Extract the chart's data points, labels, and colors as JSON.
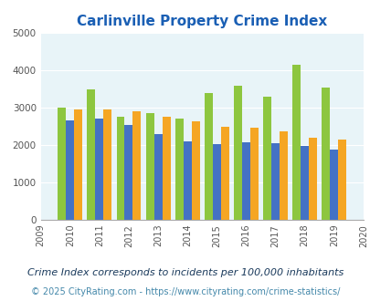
{
  "title": "Carlinville Property Crime Index",
  "bar_years": [
    2010,
    2011,
    2012,
    2013,
    2014,
    2015,
    2016,
    2017,
    2018,
    2019
  ],
  "carlinville": [
    3000,
    3500,
    2750,
    2850,
    2700,
    3400,
    3600,
    3300,
    4150,
    3550
  ],
  "illinois": [
    2650,
    2700,
    2550,
    2300,
    2100,
    2025,
    2075,
    2050,
    1975,
    1875
  ],
  "national": [
    2950,
    2950,
    2900,
    2750,
    2625,
    2500,
    2475,
    2375,
    2200,
    2150
  ],
  "color_carlinville": "#8dc63f",
  "color_illinois": "#4472c4",
  "color_national": "#f5a623",
  "ylim": [
    0,
    5000
  ],
  "yticks": [
    0,
    1000,
    2000,
    3000,
    4000,
    5000
  ],
  "background_color": "#e8f4f8",
  "title_color": "#1a5fb4",
  "title_fontsize": 11,
  "footnote1": "Crime Index corresponds to incidents per 100,000 inhabitants",
  "footnote2": "© 2025 CityRating.com - https://www.cityrating.com/crime-statistics/",
  "footnote_color1": "#1a3a5c",
  "footnote_color2": "#4488aa",
  "legend_fontsize": 9,
  "footnote1_fontsize": 8,
  "footnote2_fontsize": 7
}
